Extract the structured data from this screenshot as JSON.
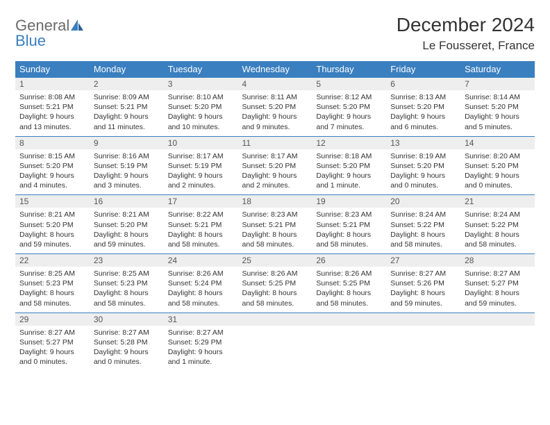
{
  "logo": {
    "general": "General",
    "blue": "Blue"
  },
  "title": "December 2024",
  "location": "Le Fousseret, France",
  "colors": {
    "header_bg": "#3a7fbf",
    "header_text": "#ffffff",
    "daynum_bg": "#eeeeee",
    "border": "#3a7fbf",
    "text": "#333333"
  },
  "weekdays": [
    "Sunday",
    "Monday",
    "Tuesday",
    "Wednesday",
    "Thursday",
    "Friday",
    "Saturday"
  ],
  "weeks": [
    [
      {
        "n": "1",
        "sr": "Sunrise: 8:08 AM",
        "ss": "Sunset: 5:21 PM",
        "dl": "Daylight: 9 hours and 13 minutes."
      },
      {
        "n": "2",
        "sr": "Sunrise: 8:09 AM",
        "ss": "Sunset: 5:21 PM",
        "dl": "Daylight: 9 hours and 11 minutes."
      },
      {
        "n": "3",
        "sr": "Sunrise: 8:10 AM",
        "ss": "Sunset: 5:20 PM",
        "dl": "Daylight: 9 hours and 10 minutes."
      },
      {
        "n": "4",
        "sr": "Sunrise: 8:11 AM",
        "ss": "Sunset: 5:20 PM",
        "dl": "Daylight: 9 hours and 9 minutes."
      },
      {
        "n": "5",
        "sr": "Sunrise: 8:12 AM",
        "ss": "Sunset: 5:20 PM",
        "dl": "Daylight: 9 hours and 7 minutes."
      },
      {
        "n": "6",
        "sr": "Sunrise: 8:13 AM",
        "ss": "Sunset: 5:20 PM",
        "dl": "Daylight: 9 hours and 6 minutes."
      },
      {
        "n": "7",
        "sr": "Sunrise: 8:14 AM",
        "ss": "Sunset: 5:20 PM",
        "dl": "Daylight: 9 hours and 5 minutes."
      }
    ],
    [
      {
        "n": "8",
        "sr": "Sunrise: 8:15 AM",
        "ss": "Sunset: 5:20 PM",
        "dl": "Daylight: 9 hours and 4 minutes."
      },
      {
        "n": "9",
        "sr": "Sunrise: 8:16 AM",
        "ss": "Sunset: 5:19 PM",
        "dl": "Daylight: 9 hours and 3 minutes."
      },
      {
        "n": "10",
        "sr": "Sunrise: 8:17 AM",
        "ss": "Sunset: 5:19 PM",
        "dl": "Daylight: 9 hours and 2 minutes."
      },
      {
        "n": "11",
        "sr": "Sunrise: 8:17 AM",
        "ss": "Sunset: 5:20 PM",
        "dl": "Daylight: 9 hours and 2 minutes."
      },
      {
        "n": "12",
        "sr": "Sunrise: 8:18 AM",
        "ss": "Sunset: 5:20 PM",
        "dl": "Daylight: 9 hours and 1 minute."
      },
      {
        "n": "13",
        "sr": "Sunrise: 8:19 AM",
        "ss": "Sunset: 5:20 PM",
        "dl": "Daylight: 9 hours and 0 minutes."
      },
      {
        "n": "14",
        "sr": "Sunrise: 8:20 AM",
        "ss": "Sunset: 5:20 PM",
        "dl": "Daylight: 9 hours and 0 minutes."
      }
    ],
    [
      {
        "n": "15",
        "sr": "Sunrise: 8:21 AM",
        "ss": "Sunset: 5:20 PM",
        "dl": "Daylight: 8 hours and 59 minutes."
      },
      {
        "n": "16",
        "sr": "Sunrise: 8:21 AM",
        "ss": "Sunset: 5:20 PM",
        "dl": "Daylight: 8 hours and 59 minutes."
      },
      {
        "n": "17",
        "sr": "Sunrise: 8:22 AM",
        "ss": "Sunset: 5:21 PM",
        "dl": "Daylight: 8 hours and 58 minutes."
      },
      {
        "n": "18",
        "sr": "Sunrise: 8:23 AM",
        "ss": "Sunset: 5:21 PM",
        "dl": "Daylight: 8 hours and 58 minutes."
      },
      {
        "n": "19",
        "sr": "Sunrise: 8:23 AM",
        "ss": "Sunset: 5:21 PM",
        "dl": "Daylight: 8 hours and 58 minutes."
      },
      {
        "n": "20",
        "sr": "Sunrise: 8:24 AM",
        "ss": "Sunset: 5:22 PM",
        "dl": "Daylight: 8 hours and 58 minutes."
      },
      {
        "n": "21",
        "sr": "Sunrise: 8:24 AM",
        "ss": "Sunset: 5:22 PM",
        "dl": "Daylight: 8 hours and 58 minutes."
      }
    ],
    [
      {
        "n": "22",
        "sr": "Sunrise: 8:25 AM",
        "ss": "Sunset: 5:23 PM",
        "dl": "Daylight: 8 hours and 58 minutes."
      },
      {
        "n": "23",
        "sr": "Sunrise: 8:25 AM",
        "ss": "Sunset: 5:23 PM",
        "dl": "Daylight: 8 hours and 58 minutes."
      },
      {
        "n": "24",
        "sr": "Sunrise: 8:26 AM",
        "ss": "Sunset: 5:24 PM",
        "dl": "Daylight: 8 hours and 58 minutes."
      },
      {
        "n": "25",
        "sr": "Sunrise: 8:26 AM",
        "ss": "Sunset: 5:25 PM",
        "dl": "Daylight: 8 hours and 58 minutes."
      },
      {
        "n": "26",
        "sr": "Sunrise: 8:26 AM",
        "ss": "Sunset: 5:25 PM",
        "dl": "Daylight: 8 hours and 58 minutes."
      },
      {
        "n": "27",
        "sr": "Sunrise: 8:27 AM",
        "ss": "Sunset: 5:26 PM",
        "dl": "Daylight: 8 hours and 59 minutes."
      },
      {
        "n": "28",
        "sr": "Sunrise: 8:27 AM",
        "ss": "Sunset: 5:27 PM",
        "dl": "Daylight: 8 hours and 59 minutes."
      }
    ],
    [
      {
        "n": "29",
        "sr": "Sunrise: 8:27 AM",
        "ss": "Sunset: 5:27 PM",
        "dl": "Daylight: 9 hours and 0 minutes."
      },
      {
        "n": "30",
        "sr": "Sunrise: 8:27 AM",
        "ss": "Sunset: 5:28 PM",
        "dl": "Daylight: 9 hours and 0 minutes."
      },
      {
        "n": "31",
        "sr": "Sunrise: 8:27 AM",
        "ss": "Sunset: 5:29 PM",
        "dl": "Daylight: 9 hours and 1 minute."
      },
      null,
      null,
      null,
      null
    ]
  ]
}
